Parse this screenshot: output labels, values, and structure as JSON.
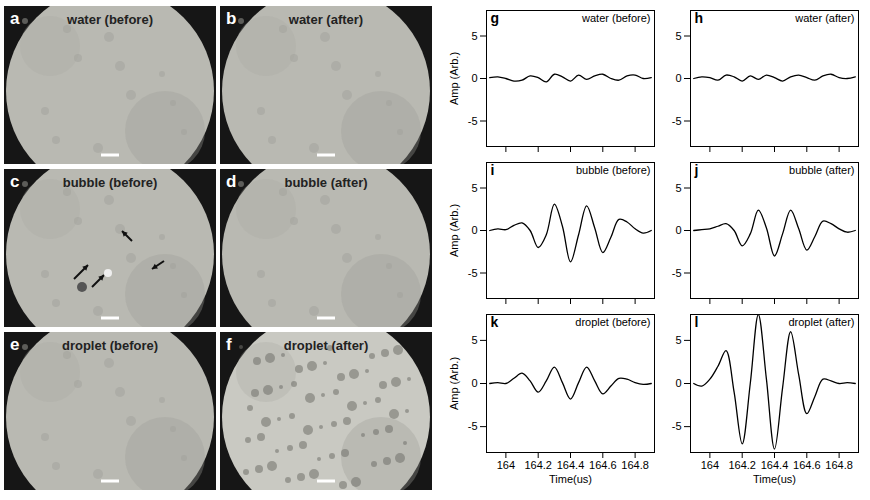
{
  "images": [
    {
      "letter": "a",
      "title": "water (before)"
    },
    {
      "letter": "b",
      "title": "water (after)"
    },
    {
      "letter": "c",
      "title": "bubble (before)"
    },
    {
      "letter": "d",
      "title": "bubble (after)"
    },
    {
      "letter": "e",
      "title": "droplet (before)"
    },
    {
      "letter": "f",
      "title": "droplet (after)"
    }
  ],
  "chart_data": [
    {
      "type": "line",
      "letter": "g",
      "title": "water (before)",
      "y_label": "Amp (Arb.)",
      "color": "#000000",
      "tick_labels": "y",
      "xlim": [
        163.88,
        164.92
      ],
      "xticks": [
        164,
        164.2,
        164.4,
        164.6,
        164.8
      ],
      "ylim": [
        -8,
        8
      ],
      "yticks": [
        -5,
        0,
        5
      ],
      "x": [
        163.9,
        163.95,
        164,
        164.05,
        164.1,
        164.15,
        164.2,
        164.25,
        164.3,
        164.35,
        164.4,
        164.45,
        164.5,
        164.55,
        164.6,
        164.65,
        164.7,
        164.75,
        164.8,
        164.85,
        164.9
      ],
      "values": [
        0.1,
        0.2,
        0,
        -0.3,
        -0.2,
        0.3,
        0.1,
        -0.4,
        0.5,
        0.2,
        -0.3,
        0.4,
        -0.1,
        0.3,
        0.5,
        0,
        -0.2,
        0.3,
        0.4,
        0,
        0.1
      ]
    },
    {
      "type": "line",
      "letter": "h",
      "title": "water (after)",
      "color": "#000000",
      "tick_labels": "y",
      "xlim": [
        163.88,
        164.92
      ],
      "xticks": [
        164,
        164.2,
        164.4,
        164.6,
        164.8
      ],
      "ylim": [
        -8,
        8
      ],
      "yticks": [
        -5,
        0,
        5
      ],
      "x": [
        163.9,
        163.95,
        164,
        164.05,
        164.1,
        164.15,
        164.2,
        164.25,
        164.3,
        164.35,
        164.4,
        164.45,
        164.5,
        164.55,
        164.6,
        164.65,
        164.7,
        164.75,
        164.8,
        164.85,
        164.9
      ],
      "values": [
        0,
        0.2,
        0.1,
        -0.2,
        0.4,
        0.2,
        -0.3,
        0.3,
        -0.1,
        0.4,
        0.1,
        -0.3,
        0.2,
        0.4,
        0.1,
        -0.2,
        0.3,
        0.5,
        0.1,
        0,
        0.2
      ]
    },
    {
      "type": "line",
      "letter": "i",
      "title": "bubble (before)",
      "y_label": "Amp (Arb.)",
      "color": "#000000",
      "tick_labels": "y",
      "xlim": [
        163.88,
        164.92
      ],
      "xticks": [
        164,
        164.2,
        164.4,
        164.6,
        164.8
      ],
      "ylim": [
        -8,
        8
      ],
      "yticks": [
        -5,
        0,
        5
      ],
      "x": [
        163.9,
        163.95,
        164,
        164.05,
        164.1,
        164.15,
        164.2,
        164.25,
        164.3,
        164.35,
        164.4,
        164.45,
        164.5,
        164.55,
        164.6,
        164.65,
        164.7,
        164.75,
        164.8,
        164.85,
        164.9
      ],
      "values": [
        0,
        0.2,
        0.1,
        0.6,
        0.9,
        0,
        -2.0,
        -0.5,
        3.1,
        0.5,
        -3.7,
        -0.5,
        2.9,
        0.3,
        -2.6,
        -0.8,
        1.3,
        1.0,
        0.2,
        -0.3,
        0
      ]
    },
    {
      "type": "line",
      "letter": "j",
      "title": "bubble (after)",
      "color": "#000000",
      "tick_labels": "y",
      "xlim": [
        163.88,
        164.92
      ],
      "xticks": [
        164,
        164.2,
        164.4,
        164.6,
        164.8
      ],
      "ylim": [
        -8,
        8
      ],
      "yticks": [
        -5,
        0,
        5
      ],
      "x": [
        163.9,
        163.95,
        164,
        164.05,
        164.1,
        164.15,
        164.2,
        164.25,
        164.3,
        164.35,
        164.4,
        164.45,
        164.5,
        164.55,
        164.6,
        164.65,
        164.7,
        164.75,
        164.8,
        164.85,
        164.9
      ],
      "values": [
        0,
        0.1,
        0.2,
        0.5,
        0.8,
        0,
        -1.8,
        -0.4,
        2.4,
        0.3,
        -3.0,
        -0.4,
        2.4,
        0.2,
        -2.3,
        -0.7,
        1.1,
        0.8,
        0.2,
        -0.2,
        0
      ]
    },
    {
      "type": "line",
      "letter": "k",
      "title": "droplet (before)",
      "y_label": "Amp (Arb.)",
      "x_label": "Time(us)",
      "color": "#000000",
      "xlim": [
        163.88,
        164.92
      ],
      "xticks": [
        164,
        164.2,
        164.4,
        164.6,
        164.8
      ],
      "ylim": [
        -8,
        8
      ],
      "yticks": [
        -5,
        0,
        5
      ],
      "x": [
        163.9,
        163.95,
        164,
        164.05,
        164.1,
        164.15,
        164.2,
        164.25,
        164.3,
        164.35,
        164.4,
        164.45,
        164.5,
        164.55,
        164.6,
        164.65,
        164.7,
        164.75,
        164.8,
        164.85,
        164.9
      ],
      "values": [
        0,
        0.1,
        0,
        0.6,
        1.2,
        0.3,
        -1.0,
        0.3,
        1.9,
        0.1,
        -1.8,
        0.1,
        1.9,
        0.3,
        -1.2,
        -0.3,
        0.6,
        0.5,
        0.1,
        -0.1,
        0
      ]
    },
    {
      "type": "line",
      "letter": "l",
      "title": "droplet (after)",
      "x_label": "Time(us)",
      "color": "#000000",
      "xlim": [
        163.88,
        164.92
      ],
      "xticks": [
        164,
        164.2,
        164.4,
        164.6,
        164.8
      ],
      "ylim": [
        -8,
        8
      ],
      "yticks": [
        -5,
        0,
        5
      ],
      "x": [
        163.9,
        163.95,
        164,
        164.05,
        164.1,
        164.15,
        164.2,
        164.25,
        164.3,
        164.35,
        164.4,
        164.45,
        164.5,
        164.55,
        164.6,
        164.65,
        164.7,
        164.75,
        164.8,
        164.85,
        164.9
      ],
      "values": [
        0,
        -0.3,
        0.5,
        2.0,
        3.8,
        -1.0,
        -7.0,
        0,
        8.0,
        0.5,
        -7.6,
        -0.5,
        6.0,
        1.0,
        -3.5,
        -1.5,
        0.5,
        0.3,
        0,
        0.1,
        0
      ]
    }
  ]
}
